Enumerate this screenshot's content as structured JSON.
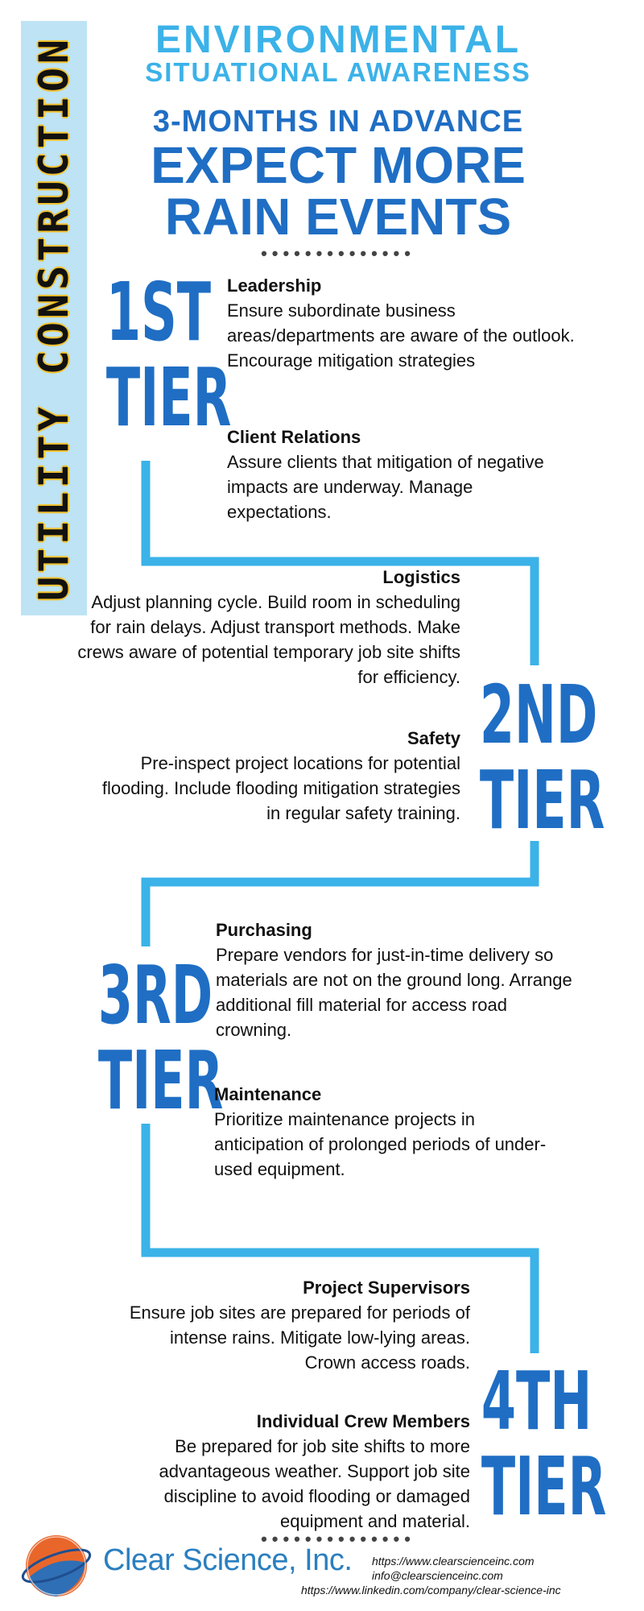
{
  "side_banner": {
    "label": "UTILITY CONSTRUCTION"
  },
  "header": {
    "line1": "ENVIRONMENTAL",
    "line2": "SITUATIONAL AWARENESS",
    "line3": "3-MONTHS IN ADVANCE",
    "line4": "EXPECT MORE",
    "line5": "RAIN EVENTS"
  },
  "divider": "••••••••••••••",
  "tiers": [
    {
      "num": "1ST",
      "word": "TIER"
    },
    {
      "num": "2ND",
      "word": "TIER"
    },
    {
      "num": "3RD",
      "word": "TIER"
    },
    {
      "num": "4TH",
      "word": "TIER"
    }
  ],
  "roles": {
    "leadership": {
      "title": "Leadership",
      "text": "Ensure subordinate business areas/departments are aware of the outlook.  Encourage mitigation strategies"
    },
    "client_relations": {
      "title": "Client Relations",
      "text": "Assure clients that mitigation of negative impacts are underway.  Manage expectations."
    },
    "logistics": {
      "title": "Logistics",
      "text": "Adjust planning cycle.  Build room in scheduling for rain delays.  Adjust transport methods.  Make crews aware of potential temporary job site shifts for efficiency."
    },
    "safety": {
      "title": "Safety",
      "text": "Pre-inspect project locations for potential flooding.  Include flooding mitigation strategies in regular safety training."
    },
    "purchasing": {
      "title": "Purchasing",
      "text": "Prepare vendors for just-in-time delivery so materials are not on the ground long.  Arrange additional fill material for access road crowning."
    },
    "maintenance": {
      "title": "Maintenance",
      "text": "Prioritize maintenance projects in anticipation of prolonged periods of under-used equipment."
    },
    "project_supervisors": {
      "title": "Project Supervisors",
      "text": "Ensure job sites are prepared for periods of intense rains.  Mitigate low-lying areas.  Crown access roads."
    },
    "crew_members": {
      "title": "Individual Crew Members",
      "text": "Be prepared for job site shifts to more advantageous weather.  Support job site discipline to avoid flooding or damaged equipment and material."
    }
  },
  "footer": {
    "brand": "Clear Science, Inc.",
    "website": "https://www.clearscienceinc.com",
    "email": "info@clearscienceinc.com",
    "linkedin": "https://www.linkedin.com/company/clear-science-inc"
  },
  "colors": {
    "accent_light": "#3bb2e8",
    "accent_dark": "#1f6ec4",
    "banner_bg": "#bde3f4",
    "connector": "#3bb2e8"
  }
}
